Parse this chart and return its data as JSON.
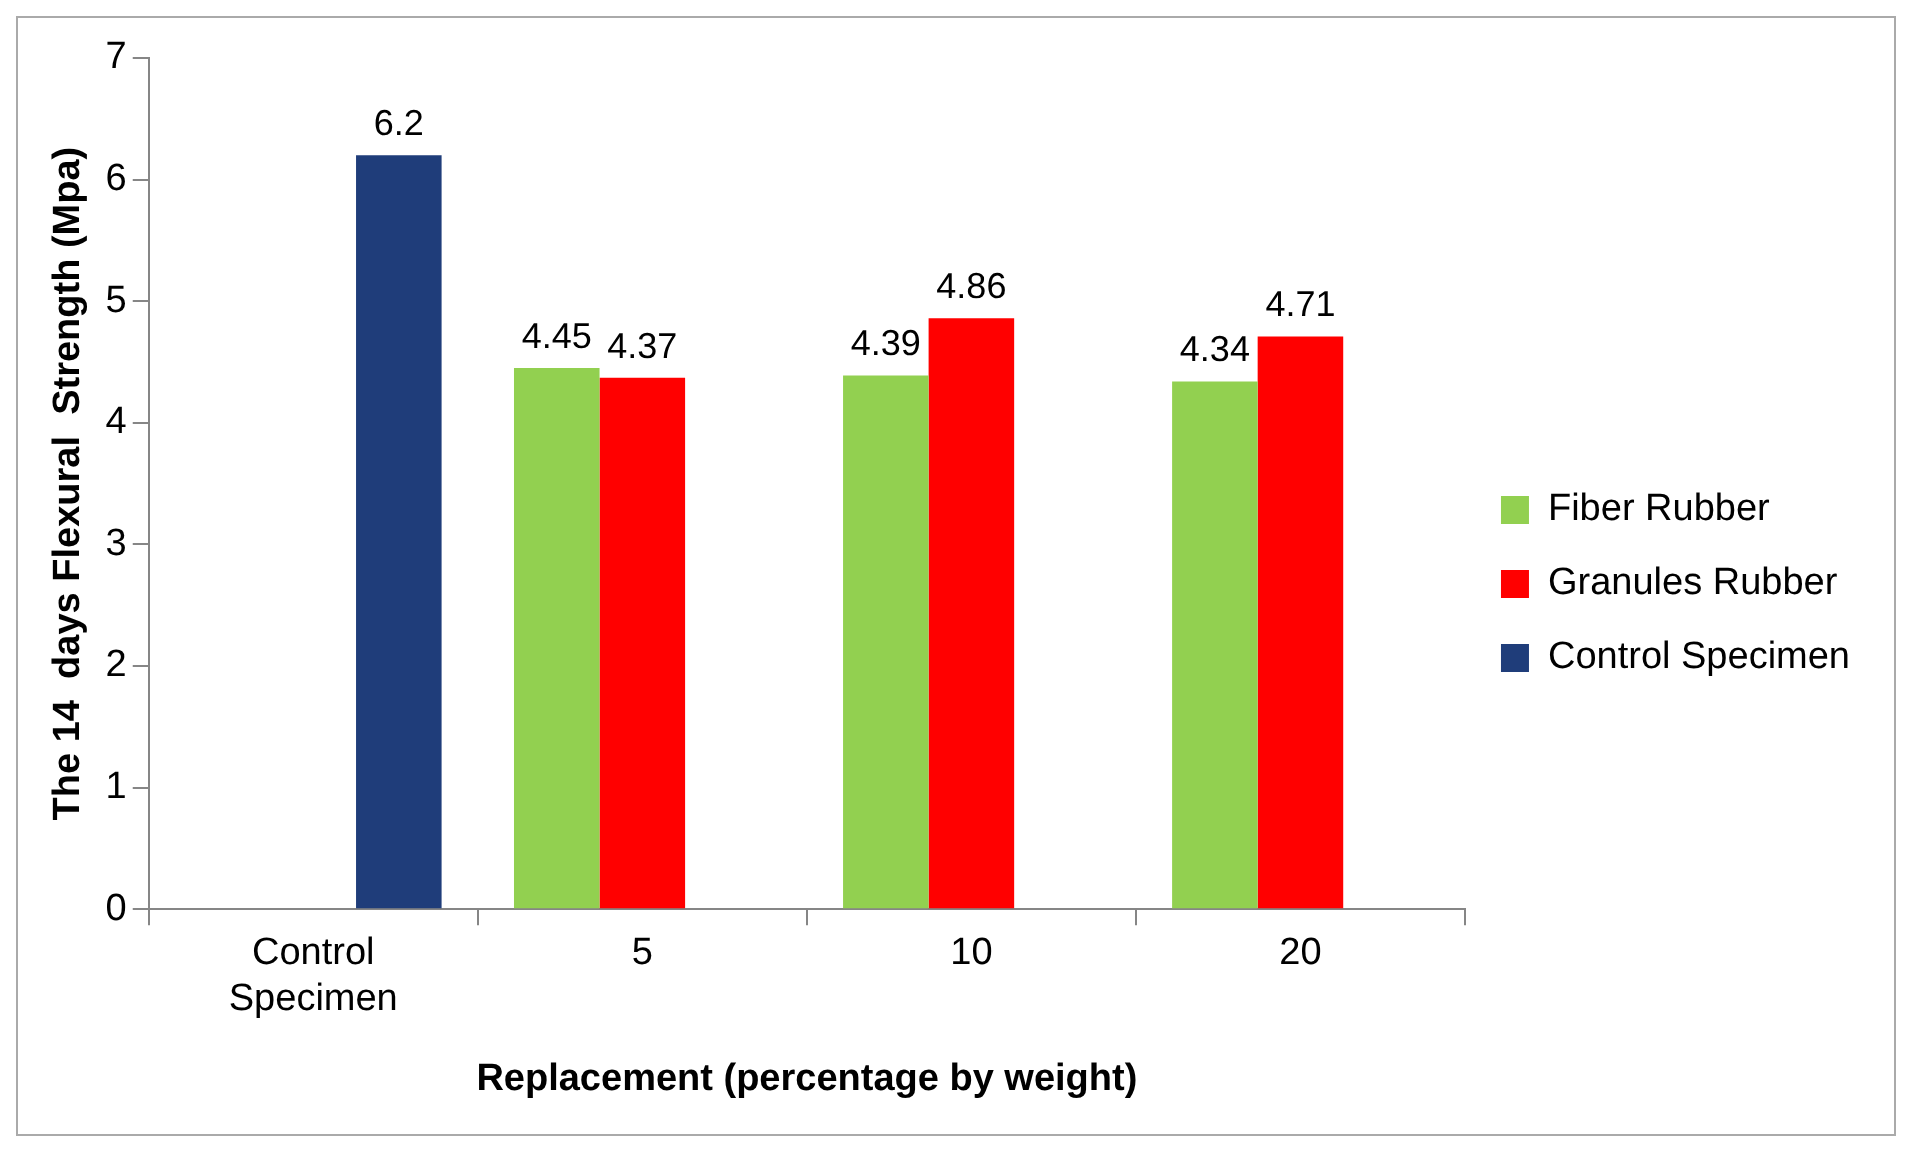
{
  "chart_data": {
    "type": "bar",
    "xlabel": "Replacement (percentage by weight)",
    "ylabel": "The 14  days Flexural  Strength (Mpa)",
    "categories": [
      "Control\nSpecimen",
      "5",
      "10",
      "20"
    ],
    "series": [
      {
        "name": "Fiber Rubber",
        "color": "#92d050",
        "values": [
          null,
          4.45,
          4.39,
          4.34
        ]
      },
      {
        "name": "Granules Rubber",
        "color": "#ff0000",
        "values": [
          null,
          4.37,
          4.86,
          4.71
        ]
      },
      {
        "name": "Control Specimen",
        "color": "#1f3d7a",
        "values": [
          6.2,
          null,
          null,
          null
        ]
      }
    ],
    "ylim": [
      0,
      7
    ],
    "yticks": [
      0,
      1,
      2,
      3,
      4,
      5,
      6,
      7
    ],
    "grid": false,
    "legend": "right",
    "data_labels": true
  }
}
